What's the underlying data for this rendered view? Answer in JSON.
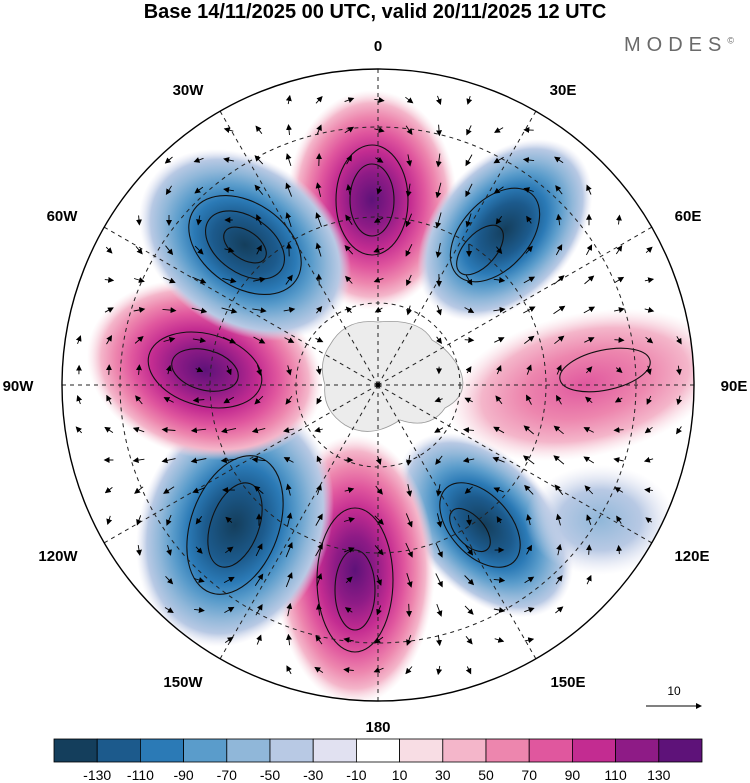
{
  "header": {
    "title": "Base 14/11/2025 00 UTC, valid 20/11/2025 12 UTC",
    "brand": "MODES",
    "brand_mark": "©"
  },
  "map": {
    "projection": "south-polar-stereographic",
    "longitude_labels": {
      "top": "0",
      "deg30e": "30E",
      "deg60e": "60E",
      "deg90e": "90E",
      "deg120e": "120E",
      "deg150e": "150E",
      "bottom": "180",
      "deg150w": "150W",
      "deg120w": "120W",
      "deg90w": "90W",
      "deg60w": "60W",
      "deg30w": "30W"
    },
    "anomaly_centres": [
      {
        "sign": "positive",
        "sector": "0"
      },
      {
        "sign": "negative",
        "sector": "30E-60E"
      },
      {
        "sign": "positive",
        "sector": "90E"
      },
      {
        "sign": "negative",
        "sector": "120E-150E"
      },
      {
        "sign": "positive",
        "sector": "180"
      },
      {
        "sign": "negative",
        "sector": "150W-120W"
      },
      {
        "sign": "positive",
        "sector": "90W"
      },
      {
        "sign": "negative",
        "sector": "60W-30W"
      }
    ]
  },
  "vector_key": {
    "label": "10"
  },
  "colorbar": {
    "colors": [
      "#143e5c",
      "#1c5a8c",
      "#2b7ab6",
      "#5a9ccb",
      "#90b7d9",
      "#b8c9e4",
      "#e1e1f1",
      "#ffffff",
      "#f8dde4",
      "#f4b6ca",
      "#ed86ae",
      "#e0579e",
      "#c32c91",
      "#8e1b86",
      "#5e1279"
    ],
    "ticks": [
      "-130",
      "-110",
      "-90",
      "-70",
      "-50",
      "-30",
      "-10",
      "10",
      "30",
      "50",
      "70",
      "90",
      "110",
      "130"
    ]
  }
}
